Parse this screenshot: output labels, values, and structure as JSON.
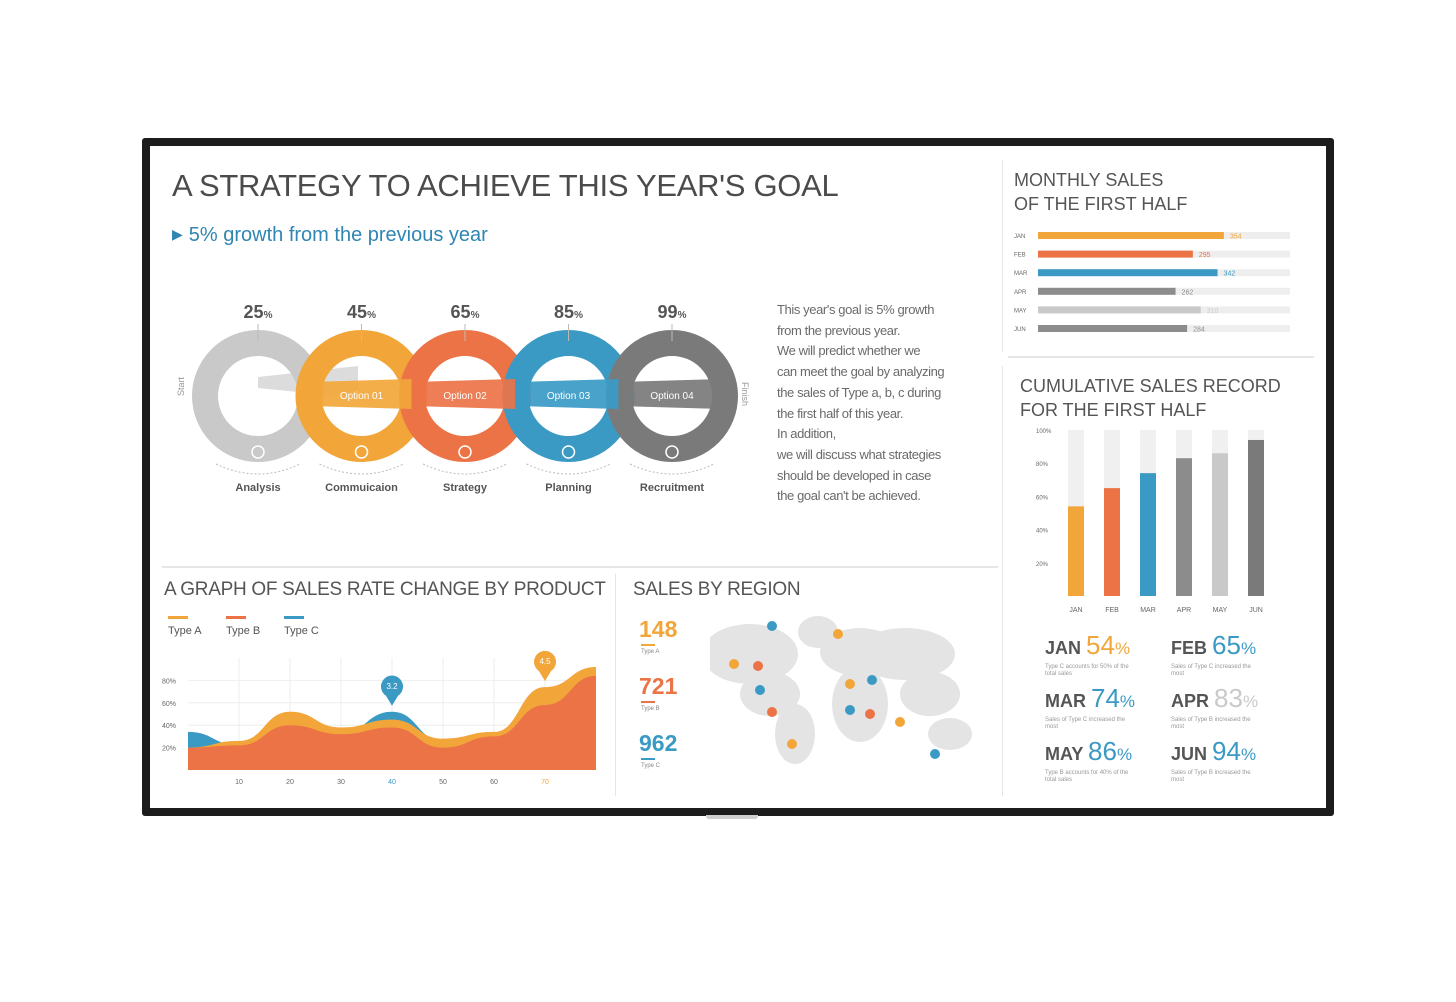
{
  "main": {
    "title": "A STRATEGY TO ACHIEVE THIS YEAR'S GOAL",
    "subtitle": "5% growth from the previous year",
    "start_label": "Start",
    "finish_label": "Finish",
    "paragraph": [
      "This year's goal is 5% growth",
      "from the previous year.",
      "We will predict whether we",
      "can meet the goal by analyzing",
      "the sales of Type a, b, c during",
      "the first half of this year.",
      "In addition,",
      "we will discuss what strategies",
      "should be developed in case",
      "the goal can't be achieved."
    ],
    "steps": [
      {
        "pct": "25",
        "unit": "%",
        "band": "",
        "label": "Analysis",
        "color": "#c9c9c9",
        "icon": "money-bag-icon"
      },
      {
        "pct": "45",
        "unit": "%",
        "band": "Option 01",
        "label": "Commuicaion",
        "color": "#f2a63a",
        "icon": "people-icon"
      },
      {
        "pct": "65",
        "unit": "%",
        "band": "Option 02",
        "label": "Strategy",
        "color": "#ec7346",
        "icon": "clock-icon"
      },
      {
        "pct": "85",
        "unit": "%",
        "band": "Option 03",
        "label": "Planning",
        "color": "#3a9ac4",
        "icon": "calendar-icon"
      },
      {
        "pct": "99",
        "unit": "%",
        "band": "Option 04",
        "label": "Recruitment",
        "color": "#7a7a7a",
        "icon": "lightbulb-icon"
      }
    ]
  },
  "monthly_sales": {
    "title_line1": "MONTHLY SALES",
    "title_line2": "OF THE FIRST HALF"
  },
  "cumulative": {
    "title_line1": "CUMULATIVE SALES RECORD",
    "title_line2": "FOR THE FIRST HALF",
    "stats": [
      {
        "month": "JAN",
        "value": "54",
        "unit": "%",
        "color": "#f2a63a",
        "note": "Type C accounts for 50% of the total sales"
      },
      {
        "month": "FEB",
        "value": "65",
        "unit": "%",
        "color": "#3a9ac4",
        "note": "Sales of Type C increased the most"
      },
      {
        "month": "MAR",
        "value": "74",
        "unit": "%",
        "color": "#3a9ac4",
        "note": "Sales of Type C increased the most"
      },
      {
        "month": "APR",
        "value": "83",
        "unit": "%",
        "color": "#c9c9c9",
        "note": "Sales of Type B increased the most"
      },
      {
        "month": "MAY",
        "value": "86",
        "unit": "%",
        "color": "#3a9ac4",
        "note": "Type B accounts for 40% of the total sales"
      },
      {
        "month": "JUN",
        "value": "94",
        "unit": "%",
        "color": "#3a9ac4",
        "note": "Sales of Type B increased the most"
      }
    ]
  },
  "graph": {
    "title": "A GRAPH OF SALES RATE CHANGE BY PRODUCT",
    "legend": [
      {
        "label": "Type A",
        "color": "#f2a63a"
      },
      {
        "label": "Type B",
        "color": "#ec7346"
      },
      {
        "label": "Type C",
        "color": "#3a9ac4"
      }
    ],
    "markers": [
      {
        "value": "3.2",
        "color": "#3a9ac4"
      },
      {
        "value": "4.5",
        "color": "#f2a63a"
      }
    ]
  },
  "region": {
    "title": "SALES BY REGION",
    "items": [
      {
        "value": "148",
        "type": "Type A",
        "color": "#f2a63a"
      },
      {
        "value": "721",
        "type": "Type B",
        "color": "#ec7346"
      },
      {
        "value": "962",
        "type": "Type C",
        "color": "#3a9ac4"
      }
    ]
  },
  "chart_data": [
    {
      "type": "bar",
      "orientation": "horizontal",
      "title": "MONTHLY SALES OF THE FIRST HALF",
      "categories": [
        "JAN",
        "FEB",
        "MAR",
        "APR",
        "MAY",
        "JUN"
      ],
      "values": [
        354,
        295,
        342,
        262,
        310,
        284
      ],
      "colors": [
        "#f2a63a",
        "#ec7346",
        "#3a9ac4",
        "#8c8c8c",
        "#c9c9c9",
        "#8c8c8c"
      ],
      "xlim": [
        0,
        480
      ]
    },
    {
      "type": "bar",
      "title": "CUMULATIVE SALES RECORD FOR THE FIRST HALF",
      "categories": [
        "JAN",
        "FEB",
        "MAR",
        "APR",
        "MAY",
        "JUN"
      ],
      "values": [
        54,
        65,
        74,
        83,
        86,
        94
      ],
      "colors": [
        "#f2a63a",
        "#ec7346",
        "#3a9ac4",
        "#8c8c8c",
        "#c9c9c9",
        "#7a7a7a"
      ],
      "yticks": [
        "20%",
        "40%",
        "60%",
        "80%",
        "100%"
      ],
      "ylim": [
        0,
        100
      ]
    },
    {
      "type": "area",
      "title": "A GRAPH OF SALES RATE CHANGE BY PRODUCT",
      "x": [
        0,
        10,
        20,
        30,
        40,
        50,
        60,
        70,
        80
      ],
      "xticks": [
        "10",
        "20",
        "30",
        "40",
        "50",
        "60",
        "70"
      ],
      "yticks": [
        "20%",
        "40%",
        "60%",
        "80%"
      ],
      "ylim": [
        0,
        100
      ],
      "series": [
        {
          "name": "Type C",
          "color": "#3a9ac4",
          "values": [
            34,
            22,
            35,
            33,
            52,
            26,
            22,
            47,
            72
          ]
        },
        {
          "name": "Type A",
          "color": "#f2a63a",
          "values": [
            20,
            26,
            52,
            38,
            45,
            28,
            34,
            74,
            92
          ]
        },
        {
          "name": "Type B",
          "color": "#ec7346",
          "values": [
            20,
            22,
            40,
            32,
            38,
            20,
            30,
            58,
            84
          ]
        }
      ]
    }
  ]
}
